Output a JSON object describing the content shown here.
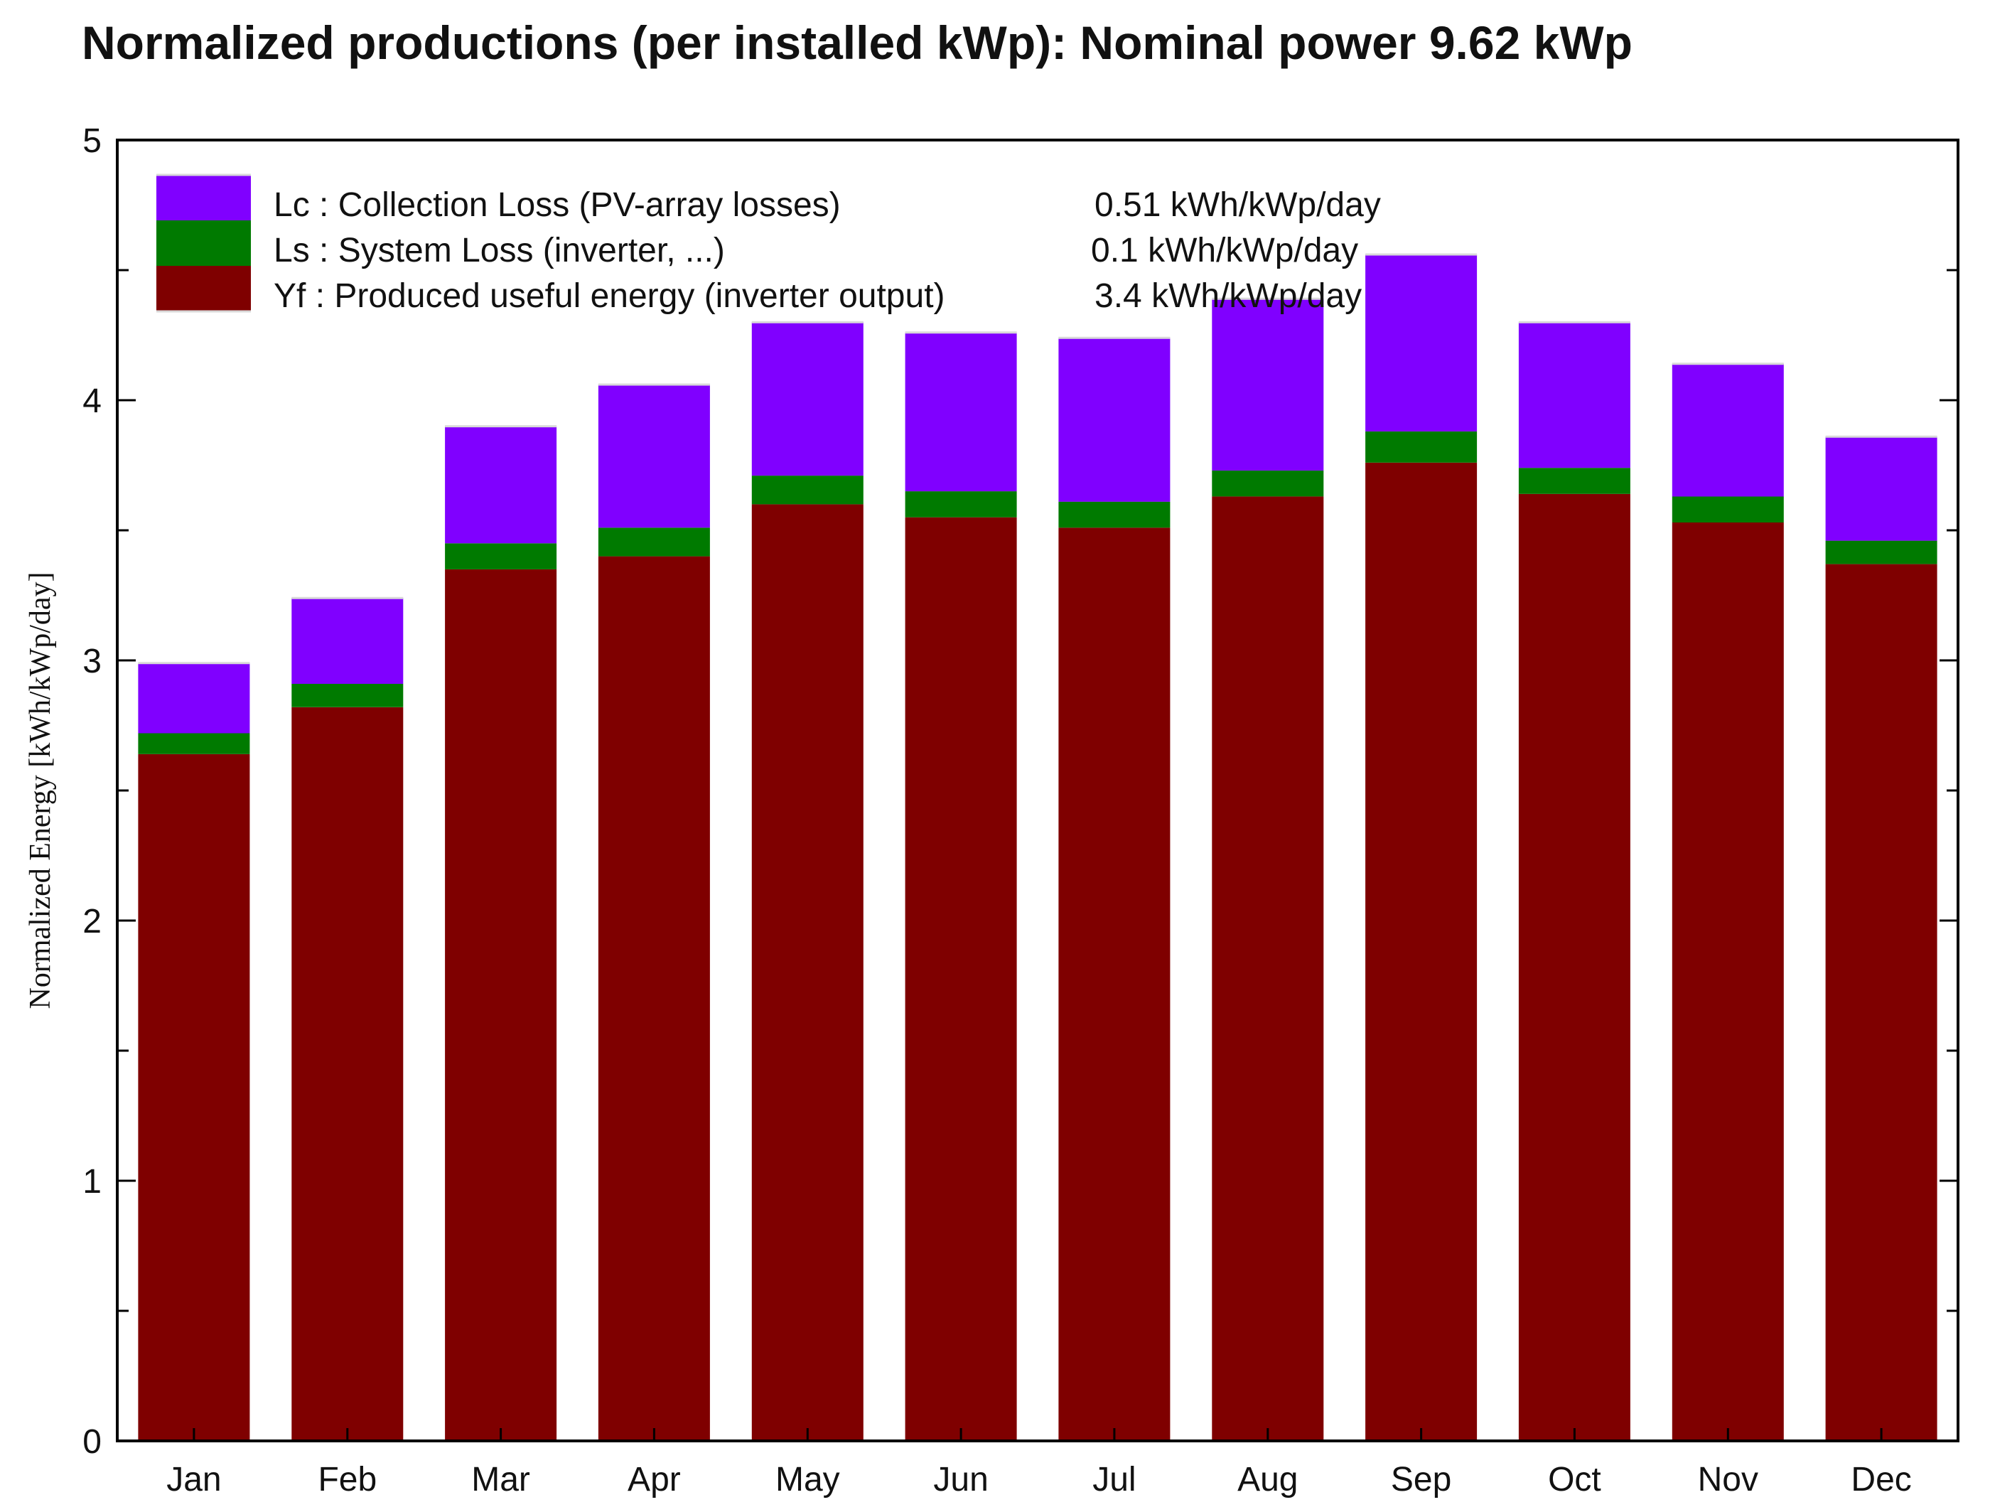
{
  "chart_data": {
    "type": "bar",
    "stacked": true,
    "title": "Normalized productions (per installed kWp):  Nominal power 9.62 kWp",
    "ylabel": "Normalized Energy [kWh/kWp/day]",
    "xlabel": "",
    "ylim": [
      0,
      5
    ],
    "yticks": [
      0,
      1,
      2,
      3,
      4,
      5
    ],
    "grid": false,
    "legend_position": "top-left",
    "categories": [
      "Jan",
      "Feb",
      "Mar",
      "Apr",
      "May",
      "Jun",
      "Jul",
      "Aug",
      "Sep",
      "Oct",
      "Nov",
      "Dec"
    ],
    "series": [
      {
        "key": "yf",
        "name": "Yf : Produced useful energy  (inverter output)",
        "value_label": "3.4 kWh/kWp/day",
        "color": "#7f0000",
        "values": [
          2.64,
          2.82,
          3.35,
          3.4,
          3.6,
          3.55,
          3.51,
          3.63,
          3.76,
          3.64,
          3.53,
          3.37
        ]
      },
      {
        "key": "ls",
        "name": "Ls : System Loss  (inverter, ...)",
        "value_label": "0.1 kWh/kWp/day",
        "color": "#007a00",
        "values": [
          0.08,
          0.09,
          0.1,
          0.11,
          0.11,
          0.1,
          0.1,
          0.1,
          0.12,
          0.1,
          0.1,
          0.09
        ]
      },
      {
        "key": "lc",
        "name": "Lc : Collection Loss (PV-array losses)",
        "value_label": "0.51 kWh/kWp/day",
        "color": "#8000ff",
        "values": [
          0.27,
          0.33,
          0.45,
          0.55,
          0.59,
          0.61,
          0.63,
          0.66,
          0.68,
          0.56,
          0.51,
          0.4
        ]
      }
    ]
  }
}
